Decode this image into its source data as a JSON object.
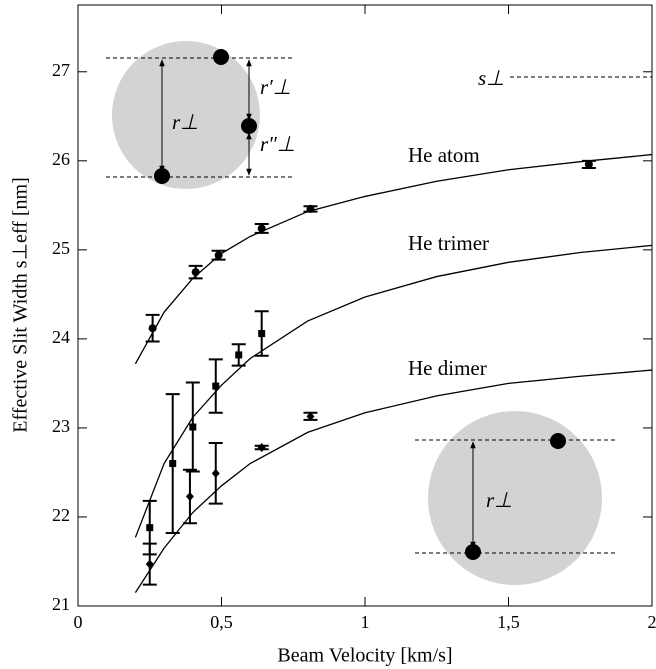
{
  "chart_data": {
    "type": "scatter",
    "x_label": "Beam Velocity [km/s]",
    "y_label": "Effective Slit Width s⊥eff [nm]",
    "xlim": [
      0,
      2
    ],
    "ylim": [
      21,
      27.75
    ],
    "xticks": [
      0,
      {
        "value": 0.5,
        "label": "0,5"
      },
      1,
      {
        "value": 1.5,
        "label": "1,5"
      },
      2
    ],
    "yticks": [
      21,
      22,
      23,
      24,
      25,
      26,
      27
    ],
    "color": "#000000",
    "series": [
      {
        "name": "He atom",
        "marker": "circle",
        "x": [
          0.26,
          0.41,
          0.49,
          0.64,
          0.81,
          1.78
        ],
        "values": [
          24.12,
          24.75,
          24.94,
          25.24,
          25.46,
          25.96
        ],
        "errors": [
          0.15,
          0.07,
          0.05,
          0.05,
          0.03,
          0.04
        ]
      },
      {
        "name": "He trimer",
        "marker": "square",
        "x": [
          0.25,
          0.33,
          0.4,
          0.48,
          0.56,
          0.64
        ],
        "values": [
          21.88,
          22.6,
          23.01,
          23.47,
          23.82,
          24.06
        ],
        "errors": [
          0.3,
          0.78,
          0.5,
          0.3,
          0.12,
          0.25
        ]
      },
      {
        "name": "He dimer",
        "marker": "diamond",
        "x": [
          0.25,
          0.39,
          0.48,
          0.64,
          0.81
        ],
        "values": [
          21.47,
          22.23,
          22.49,
          22.78,
          23.13
        ],
        "errors": [
          0.23,
          0.3,
          0.34,
          0.02,
          0.04
        ]
      }
    ],
    "fits": [
      {
        "x": [
          0.2,
          0.3,
          0.4,
          0.5,
          0.6,
          0.8,
          1.0,
          1.25,
          1.5,
          1.75,
          2.0
        ],
        "values": [
          23.72,
          24.3,
          24.68,
          24.96,
          25.15,
          25.43,
          25.6,
          25.77,
          25.9,
          25.99,
          26.07
        ]
      },
      {
        "x": [
          0.2,
          0.3,
          0.4,
          0.5,
          0.6,
          0.8,
          1.0,
          1.25,
          1.5,
          1.75,
          2.0
        ],
        "values": [
          21.77,
          22.6,
          23.12,
          23.48,
          23.78,
          24.2,
          24.47,
          24.7,
          24.86,
          24.97,
          25.05
        ]
      },
      {
        "x": [
          0.2,
          0.3,
          0.4,
          0.5,
          0.6,
          0.8,
          1.0,
          1.25,
          1.5,
          1.75,
          2.0
        ],
        "values": [
          21.15,
          21.65,
          22.05,
          22.35,
          22.6,
          22.95,
          23.17,
          23.36,
          23.5,
          23.58,
          23.65
        ]
      }
    ],
    "annotations": [
      "s⊥",
      "r⊥",
      "r′⊥",
      "r″⊥",
      "r⊥"
    ]
  }
}
